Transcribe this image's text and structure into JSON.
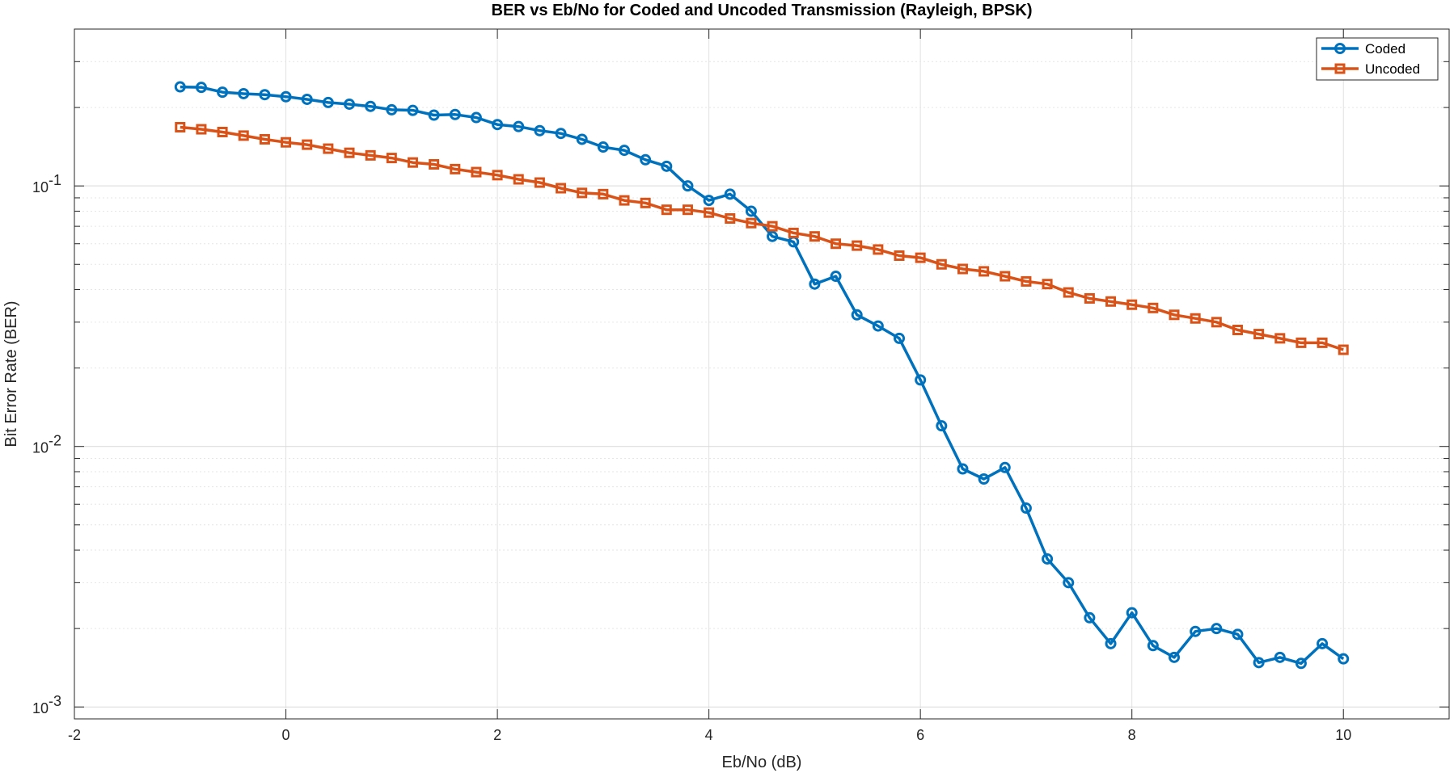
{
  "chart_data": {
    "type": "line",
    "title": "BER vs Eb/No for Coded and Uncoded Transmission (Rayleigh, BPSK)",
    "xlabel": "Eb/No (dB)",
    "ylabel": "Bit Error Rate (BER)",
    "xlim": [
      -2,
      11
    ],
    "ylim": [
      0.0009,
      0.4
    ],
    "yscale": "log",
    "grid": true,
    "legend_location": "top-right",
    "x_ticks": [
      -2,
      0,
      2,
      4,
      6,
      8,
      10
    ],
    "x_tick_labels": [
      "-2",
      "0",
      "2",
      "4",
      "6",
      "8",
      "10"
    ],
    "y_ticks": [
      0.001,
      0.01,
      0.1
    ],
    "y_tick_labels": [
      {
        "base": "10",
        "exp": "-3"
      },
      {
        "base": "10",
        "exp": "-2"
      },
      {
        "base": "10",
        "exp": "-1"
      }
    ],
    "x": [
      -1,
      -0.8,
      -0.6,
      -0.4,
      -0.2,
      0,
      0.2,
      0.4,
      0.6,
      0.8,
      1,
      1.2,
      1.4,
      1.6,
      1.8,
      2,
      2.2,
      2.4,
      2.6,
      2.8,
      3,
      3.2,
      3.4,
      3.6,
      3.8,
      4,
      4.2,
      4.4,
      4.6,
      4.8,
      5,
      5.2,
      5.4,
      5.6,
      5.8,
      6,
      6.2,
      6.4,
      6.6,
      6.8,
      7,
      7.2,
      7.4,
      7.6,
      7.8,
      8,
      8.2,
      8.4,
      8.6,
      8.8,
      9,
      9.2,
      9.4,
      9.6,
      9.8,
      10
    ],
    "series": [
      {
        "name": "Coded",
        "color": "#0072BD",
        "marker": "circle",
        "values": [
          0.24,
          0.239,
          0.229,
          0.226,
          0.224,
          0.22,
          0.215,
          0.209,
          0.206,
          0.202,
          0.196,
          0.195,
          0.187,
          0.188,
          0.183,
          0.172,
          0.169,
          0.163,
          0.159,
          0.151,
          0.141,
          0.137,
          0.126,
          0.119,
          0.1,
          0.088,
          0.093,
          0.08,
          0.064,
          0.061,
          0.042,
          0.045,
          0.032,
          0.029,
          0.026,
          0.018,
          0.012,
          0.0082,
          0.0075,
          0.0083,
          0.0058,
          0.0037,
          0.003,
          0.0022,
          0.00175,
          0.0023,
          0.00172,
          0.00155,
          0.00195,
          0.002,
          0.0019,
          0.00148,
          0.00155,
          0.00147,
          0.00175,
          0.00153
        ]
      },
      {
        "name": "Uncoded",
        "color": "#D95319",
        "marker": "square",
        "values": [
          0.168,
          0.165,
          0.161,
          0.156,
          0.151,
          0.147,
          0.144,
          0.139,
          0.134,
          0.131,
          0.128,
          0.123,
          0.121,
          0.116,
          0.113,
          0.11,
          0.106,
          0.103,
          0.098,
          0.094,
          0.093,
          0.088,
          0.086,
          0.081,
          0.081,
          0.079,
          0.075,
          0.072,
          0.07,
          0.066,
          0.064,
          0.06,
          0.059,
          0.057,
          0.054,
          0.053,
          0.05,
          0.048,
          0.047,
          0.045,
          0.043,
          0.042,
          0.039,
          0.037,
          0.036,
          0.035,
          0.034,
          0.032,
          0.031,
          0.03,
          0.028,
          0.027,
          0.026,
          0.025,
          0.025,
          0.0235
        ]
      }
    ]
  }
}
